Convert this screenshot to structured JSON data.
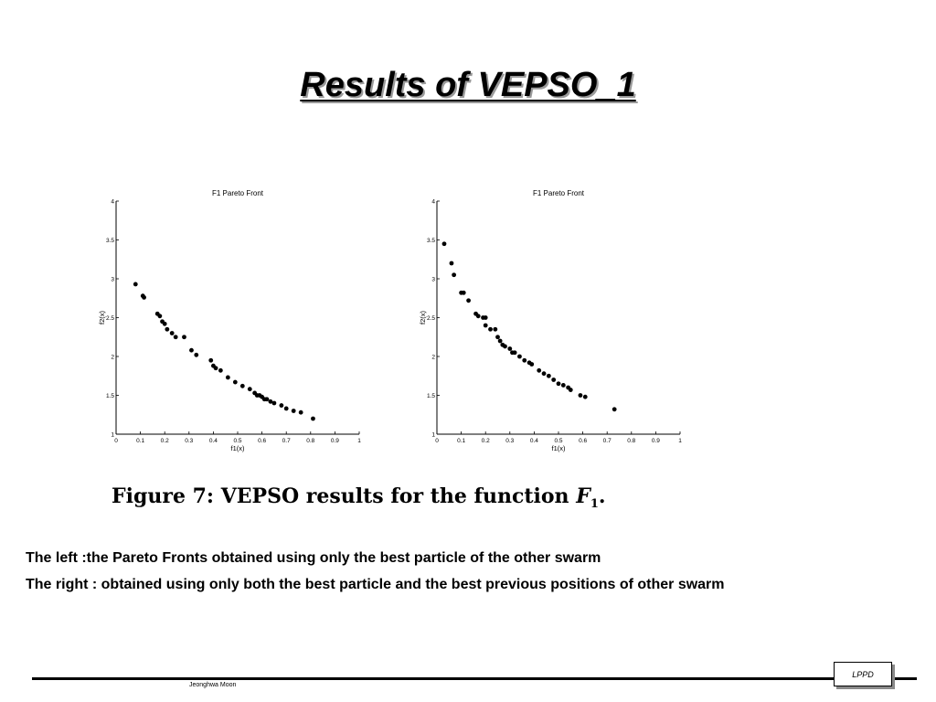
{
  "slide": {
    "title": "Results of VEPSO_1",
    "caption_prefix": "Figure 7:  VEPSO results for the function ",
    "caption_function": "F",
    "caption_subscript": "1",
    "caption_suffix": ".",
    "line1": "The left :the Pareto Fronts obtained using only the best particle of the other swarm",
    "line2": "The right : obtained using only both the best particle and the best previous positions of other swarm",
    "footer_author": "Jeonghwa Moon",
    "footer_badge": "LPPD"
  },
  "chart_data": [
    {
      "type": "scatter",
      "title": "F1 Pareto Front",
      "xlabel": "f1(x)",
      "ylabel": "f2(x)",
      "xlim": [
        0,
        1
      ],
      "ylim": [
        1,
        4
      ],
      "xticks": [
        "0",
        "0.1",
        "0.2",
        "0.3",
        "0.4",
        "0.5",
        "0.6",
        "0.7",
        "0.8",
        "0.9",
        "1"
      ],
      "yticks": [
        "1",
        "1.5",
        "2",
        "2.5",
        "3",
        "3.5",
        "4"
      ],
      "grid": false,
      "x": [
        0.08,
        0.11,
        0.115,
        0.17,
        0.18,
        0.19,
        0.2,
        0.21,
        0.23,
        0.245,
        0.28,
        0.31,
        0.33,
        0.39,
        0.4,
        0.41,
        0.43,
        0.46,
        0.49,
        0.52,
        0.55,
        0.57,
        0.58,
        0.59,
        0.6,
        0.61,
        0.62,
        0.635,
        0.65,
        0.68,
        0.7,
        0.73,
        0.76,
        0.81
      ],
      "y": [
        2.93,
        2.78,
        2.76,
        2.55,
        2.52,
        2.45,
        2.42,
        2.35,
        2.3,
        2.25,
        2.25,
        2.08,
        2.02,
        1.95,
        1.88,
        1.85,
        1.82,
        1.73,
        1.67,
        1.62,
        1.58,
        1.53,
        1.5,
        1.5,
        1.48,
        1.45,
        1.45,
        1.42,
        1.4,
        1.37,
        1.33,
        1.3,
        1.28,
        1.2
      ]
    },
    {
      "type": "scatter",
      "title": "F1 Pareto Front",
      "xlabel": "f1(x)",
      "ylabel": "f2(x)",
      "xlim": [
        0,
        1
      ],
      "ylim": [
        1,
        4
      ],
      "xticks": [
        "0",
        "0.1",
        "0.2",
        "0.3",
        "0.4",
        "0.5",
        "0.6",
        "0.7",
        "0.8",
        "0.9",
        "1"
      ],
      "yticks": [
        "1",
        "1.5",
        "2",
        "2.5",
        "3",
        "3.5",
        "4"
      ],
      "grid": false,
      "x": [
        0.03,
        0.06,
        0.07,
        0.1,
        0.11,
        0.13,
        0.16,
        0.17,
        0.19,
        0.2,
        0.2,
        0.22,
        0.24,
        0.25,
        0.26,
        0.27,
        0.28,
        0.3,
        0.31,
        0.32,
        0.34,
        0.36,
        0.38,
        0.39,
        0.42,
        0.44,
        0.46,
        0.48,
        0.5,
        0.52,
        0.54,
        0.55,
        0.59,
        0.61,
        0.73
      ],
      "y": [
        3.45,
        3.2,
        3.05,
        2.82,
        2.82,
        2.72,
        2.55,
        2.52,
        2.5,
        2.4,
        2.5,
        2.35,
        2.35,
        2.25,
        2.2,
        2.15,
        2.13,
        2.1,
        2.05,
        2.05,
        2.0,
        1.95,
        1.92,
        1.9,
        1.82,
        1.78,
        1.75,
        1.7,
        1.65,
        1.63,
        1.6,
        1.57,
        1.5,
        1.48,
        1.32
      ]
    }
  ]
}
